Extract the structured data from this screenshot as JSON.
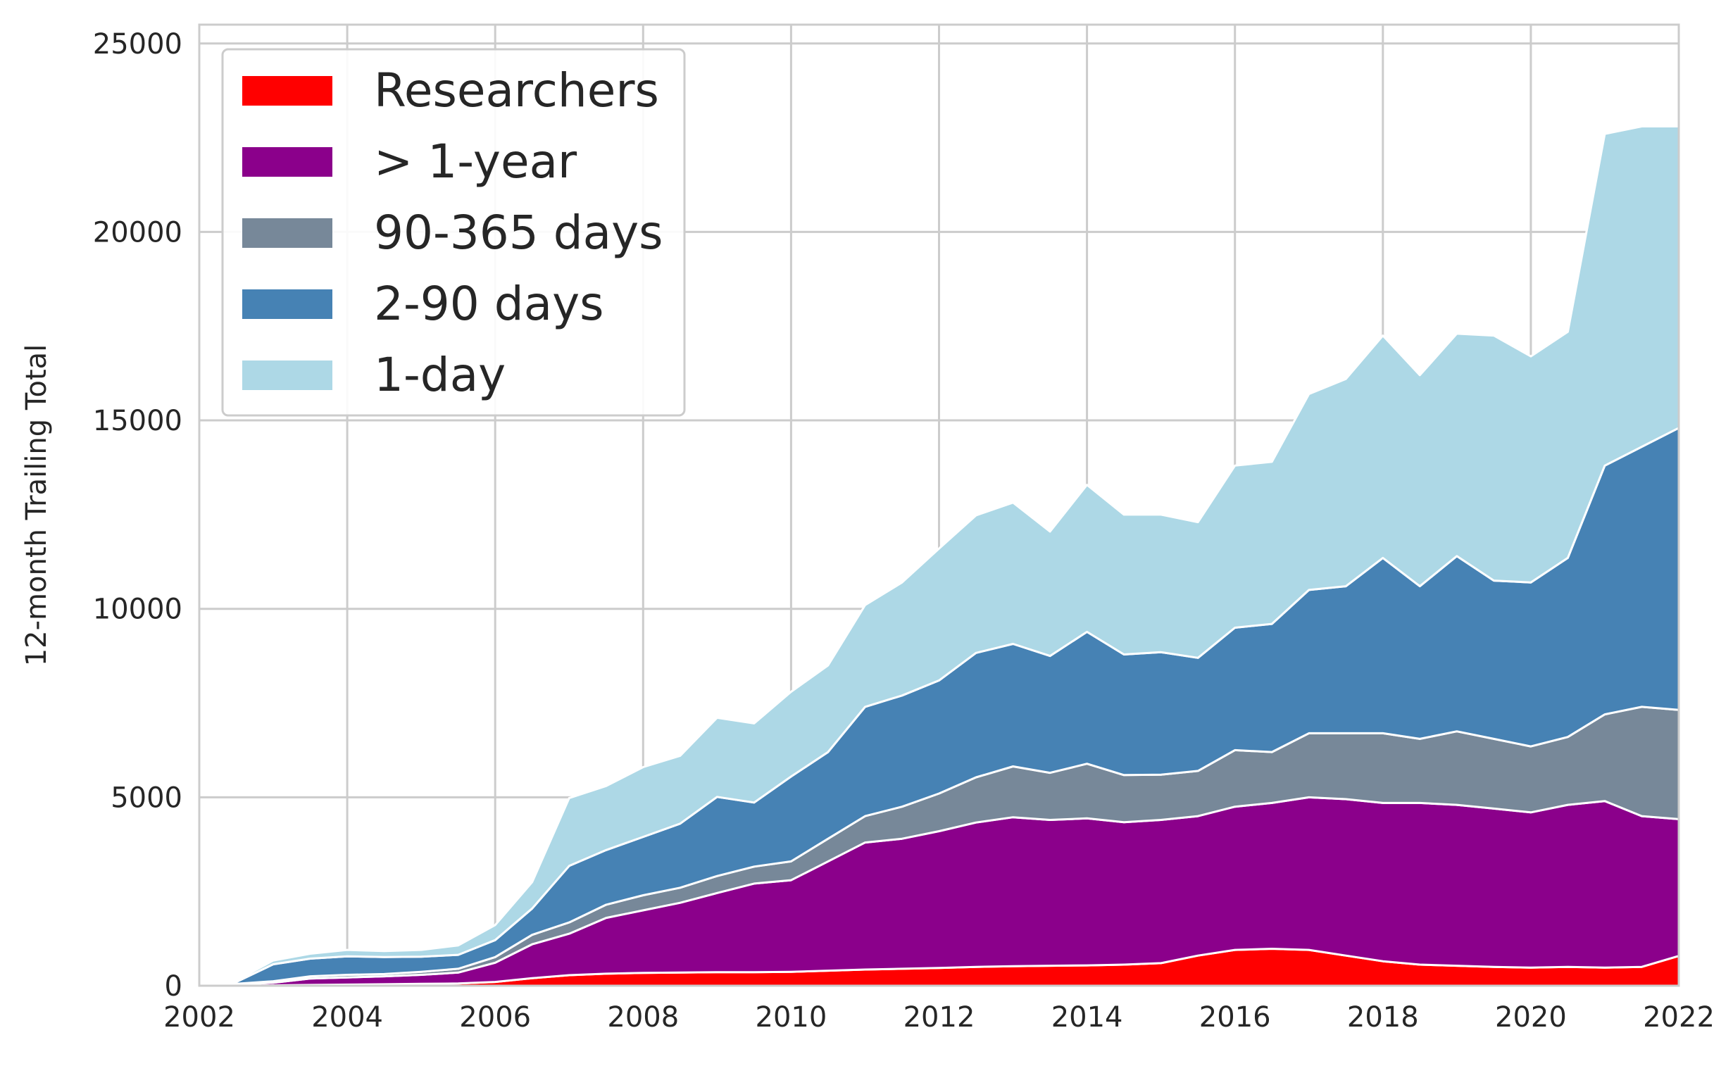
{
  "chart_data": {
    "type": "area",
    "stacked": true,
    "title": "",
    "xlabel": "",
    "ylabel": "12-month Trailing Total",
    "xlim": [
      2002,
      2022
    ],
    "ylim": [
      0,
      25500
    ],
    "xticks": [
      2002,
      2004,
      2006,
      2008,
      2010,
      2012,
      2014,
      2016,
      2018,
      2020,
      2022
    ],
    "xtick_labels": [
      "2002",
      "2004",
      "2006",
      "2008",
      "2010",
      "2012",
      "2014",
      "2016",
      "2018",
      "2020",
      "2022"
    ],
    "yticks": [
      0,
      5000,
      10000,
      15000,
      20000,
      25000
    ],
    "ytick_labels": [
      "0",
      "5000",
      "10000",
      "15000",
      "20000",
      "25000"
    ],
    "grid": true,
    "legend_position": "top-left",
    "x": [
      2002.0,
      2002.5,
      2003.0,
      2003.5,
      2004.0,
      2004.5,
      2005.0,
      2005.5,
      2006.0,
      2006.5,
      2007.0,
      2007.5,
      2008.0,
      2008.5,
      2009.0,
      2009.5,
      2010.0,
      2010.5,
      2011.0,
      2011.5,
      2012.0,
      2012.5,
      2013.0,
      2013.5,
      2014.0,
      2014.5,
      2015.0,
      2015.5,
      2016.0,
      2016.5,
      2017.0,
      2017.5,
      2018.0,
      2018.5,
      2019.0,
      2019.5,
      2020.0,
      2020.5,
      2021.0,
      2021.5,
      2022.0
    ],
    "series": [
      {
        "name": "Researchers",
        "color": "#ff0000",
        "values": [
          0,
          0,
          10,
          20,
          30,
          40,
          50,
          60,
          100,
          200,
          280,
          320,
          340,
          350,
          360,
          360,
          370,
          400,
          430,
          450,
          470,
          500,
          520,
          530,
          540,
          560,
          600,
          800,
          950,
          980,
          950,
          800,
          650,
          560,
          530,
          500,
          480,
          500,
          480,
          500,
          790
        ]
      },
      {
        "name": "> 1-year",
        "color": "#8b008b",
        "values": [
          0,
          30,
          70,
          170,
          190,
          210,
          240,
          290,
          510,
          900,
          1100,
          1480,
          1660,
          1850,
          2100,
          2350,
          2430,
          2900,
          3370,
          3450,
          3630,
          3830,
          3950,
          3870,
          3900,
          3780,
          3800,
          3700,
          3800,
          3870,
          4050,
          4150,
          4200,
          4290,
          4270,
          4200,
          4120,
          4300,
          4420,
          4000,
          3630
        ]
      },
      {
        "name": "90-365 days",
        "color": "#778899",
        "values": [
          0,
          20,
          40,
          60,
          70,
          60,
          80,
          100,
          150,
          250,
          300,
          350,
          400,
          400,
          450,
          450,
          500,
          600,
          700,
          850,
          1000,
          1200,
          1350,
          1250,
          1450,
          1250,
          1200,
          1200,
          1500,
          1350,
          1700,
          1750,
          1850,
          1700,
          1950,
          1850,
          1750,
          1800,
          2300,
          2900,
          2900
        ]
      },
      {
        "name": "2-90 days",
        "color": "#4682b4",
        "values": [
          0,
          50,
          450,
          470,
          490,
          450,
          400,
          370,
          450,
          700,
          1500,
          1450,
          1550,
          1700,
          2100,
          1700,
          2250,
          2300,
          2900,
          2950,
          3000,
          3300,
          3250,
          3100,
          3500,
          3200,
          3250,
          3000,
          3250,
          3400,
          3800,
          3900,
          4650,
          4050,
          4650,
          4200,
          4350,
          4750,
          6600,
          6900,
          7480
        ]
      },
      {
        "name": "1-day",
        "color": "#add8e6",
        "values": [
          0,
          40,
          100,
          130,
          170,
          160,
          180,
          250,
          400,
          700,
          1800,
          1700,
          1850,
          1800,
          2100,
          2100,
          2250,
          2300,
          2700,
          3000,
          3500,
          3650,
          3750,
          3300,
          3900,
          3710,
          3650,
          3600,
          4300,
          4300,
          5200,
          5500,
          5900,
          5600,
          5900,
          6500,
          6000,
          6000,
          8800,
          8500,
          8000
        ]
      }
    ]
  }
}
